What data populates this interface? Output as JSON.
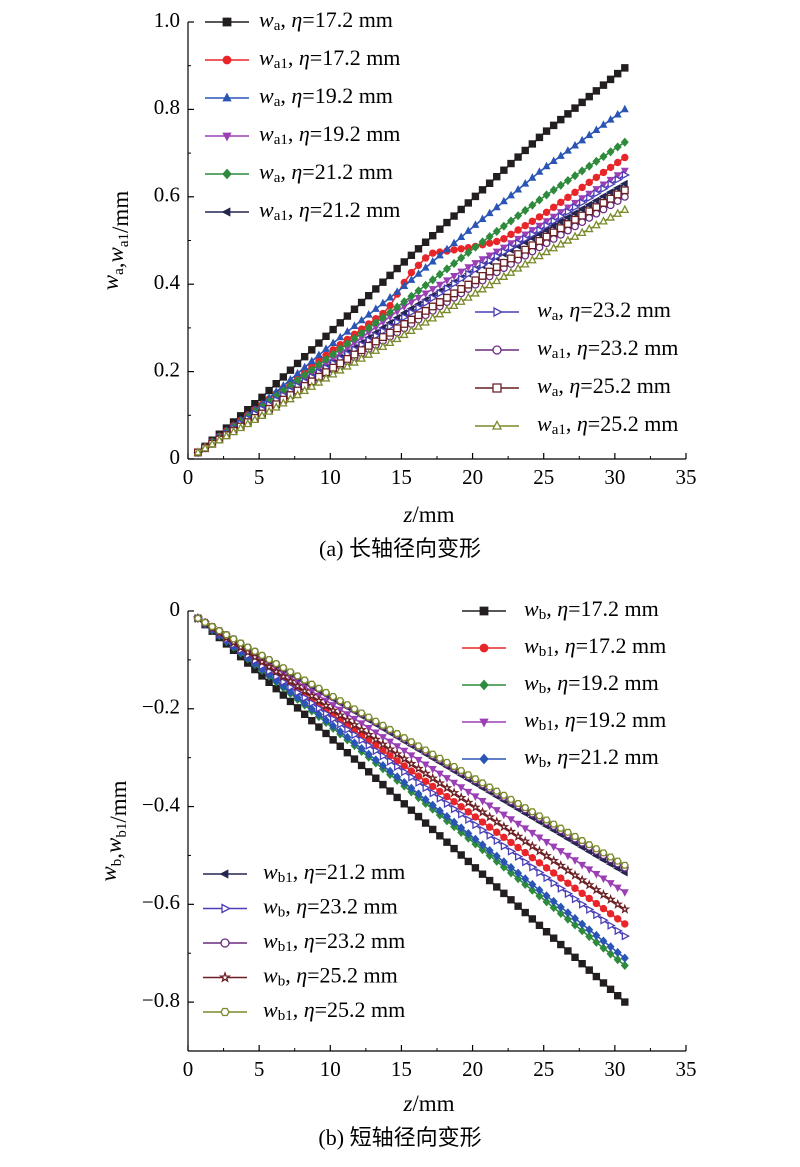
{
  "chart_data": [
    {
      "type": "line",
      "caption": "(a) 长轴径向变形",
      "xlabel": "z/mm",
      "ylabel": "w_a,w_a1/mm",
      "xlim": [
        0,
        35
      ],
      "ylim": [
        0,
        1.0
      ],
      "xticks": [
        "0",
        "5",
        "10",
        "15",
        "20",
        "25",
        "30",
        "35"
      ],
      "yticks": [
        "0",
        "0.2",
        "0.4",
        "0.6",
        "0.8",
        "1.0"
      ],
      "x_range": [
        0.7,
        30.7
      ],
      "legend_position": "top-left and right-middle",
      "series": [
        {
          "name": "w_a, η=17.2 mm",
          "sym": "a",
          "eta": "17.2",
          "color": "#231f20",
          "marker": "square-filled",
          "end": 0.895,
          "points": [
            [
              0.7,
              0.015
            ],
            [
              5,
              0.135
            ],
            [
              10,
              0.29
            ],
            [
              15,
              0.445
            ],
            [
              20,
              0.595
            ],
            [
              25,
              0.745
            ],
            [
              30.7,
              0.895
            ]
          ]
        },
        {
          "name": "w_a1, η=17.2 mm",
          "sym": "a1",
          "eta": "17.2",
          "color": "#e8262a",
          "marker": "circle-filled",
          "end": 0.69,
          "points": [
            [
              0.7,
              0.015
            ],
            [
              5,
              0.12
            ],
            [
              10,
              0.245
            ],
            [
              14,
              0.34
            ],
            [
              15.5,
              0.42
            ],
            [
              17,
              0.47
            ],
            [
              19,
              0.48
            ],
            [
              20,
              0.485
            ],
            [
              22,
              0.5
            ],
            [
              25,
              0.56
            ],
            [
              30.7,
              0.69
            ]
          ]
        },
        {
          "name": "w_a, η=19.2 mm",
          "sym": "a",
          "eta": "19.2",
          "color": "#2a55b5",
          "marker": "triangle-up-filled",
          "end": 0.8,
          "points": [
            [
              0.7,
              0.015
            ],
            [
              5,
              0.12
            ],
            [
              10,
              0.26
            ],
            [
              15,
              0.39
            ],
            [
              20,
              0.53
            ],
            [
              25,
              0.665
            ],
            [
              30.7,
              0.8
            ]
          ]
        },
        {
          "name": "w_a1, η=19.2 mm",
          "sym": "a1",
          "eta": "19.2",
          "color": "#9b3fb5",
          "marker": "triangle-down-filled",
          "end": 0.66,
          "points": [
            [
              0.7,
              0.015
            ],
            [
              5,
              0.11
            ],
            [
              10,
              0.225
            ],
            [
              15,
              0.345
            ],
            [
              20,
              0.445
            ],
            [
              22,
              0.48
            ],
            [
              25,
              0.54
            ],
            [
              30.7,
              0.66
            ]
          ]
        },
        {
          "name": "w_a, η=21.2 mm",
          "sym": "a",
          "eta": "21.2",
          "color": "#2e8b3d",
          "marker": "diamond-filled",
          "end": 0.725,
          "points": [
            [
              0.7,
              0.015
            ],
            [
              5,
              0.115
            ],
            [
              10,
              0.235
            ],
            [
              15,
              0.355
            ],
            [
              20,
              0.48
            ],
            [
              25,
              0.6
            ],
            [
              30.7,
              0.725
            ]
          ]
        },
        {
          "name": "w_a1, η=21.2 mm",
          "sym": "a1",
          "eta": "21.2",
          "color": "#252650",
          "marker": "triangle-left-filled",
          "end": 0.63,
          "points": [
            [
              0.7,
              0.015
            ],
            [
              5,
              0.105
            ],
            [
              10,
              0.215
            ],
            [
              15,
              0.33
            ],
            [
              20,
              0.43
            ],
            [
              25,
              0.52
            ],
            [
              30.7,
              0.63
            ]
          ]
        },
        {
          "name": "w_a, η=23.2 mm",
          "sym": "a",
          "eta": "23.2",
          "color": "#4a3fb8",
          "marker": "triangle-right-open",
          "end": 0.65,
          "points": [
            [
              0.7,
              0.015
            ],
            [
              5,
              0.11
            ],
            [
              10,
              0.215
            ],
            [
              15,
              0.32
            ],
            [
              20,
              0.43
            ],
            [
              25,
              0.53
            ],
            [
              30.7,
              0.65
            ]
          ]
        },
        {
          "name": "w_a1, η=23.2 mm",
          "sym": "a1",
          "eta": "23.2",
          "color": "#6a2c7f",
          "marker": "circle-open",
          "end": 0.6,
          "points": [
            [
              0.7,
              0.015
            ],
            [
              5,
              0.1
            ],
            [
              10,
              0.2
            ],
            [
              15,
              0.295
            ],
            [
              20,
              0.395
            ],
            [
              25,
              0.49
            ],
            [
              30.7,
              0.6
            ]
          ]
        },
        {
          "name": "w_a, η=25.2 mm",
          "sym": "a",
          "eta": "25.2",
          "color": "#6a1f23",
          "marker": "square-open",
          "end": 0.615,
          "points": [
            [
              0.7,
              0.015
            ],
            [
              5,
              0.1
            ],
            [
              10,
              0.205
            ],
            [
              15,
              0.305
            ],
            [
              20,
              0.405
            ],
            [
              25,
              0.505
            ],
            [
              30.7,
              0.615
            ]
          ]
        },
        {
          "name": "w_a1, η=25.2 mm",
          "sym": "a1",
          "eta": "25.2",
          "color": "#7a8a2a",
          "marker": "triangle-up-open",
          "end": 0.57,
          "points": [
            [
              0.7,
              0.015
            ],
            [
              5,
              0.095
            ],
            [
              10,
              0.19
            ],
            [
              15,
              0.28
            ],
            [
              20,
              0.375
            ],
            [
              25,
              0.47
            ],
            [
              30.7,
              0.57
            ]
          ]
        }
      ]
    },
    {
      "type": "line",
      "caption": "(b) 短轴径向变形",
      "xlabel": "z/mm",
      "ylabel": "w_b,w_b1/mm",
      "xlim": [
        0,
        35
      ],
      "ylim": [
        -0.9,
        0
      ],
      "xticks": [
        "0",
        "5",
        "10",
        "15",
        "20",
        "25",
        "30",
        "35"
      ],
      "yticks": [
        "0",
        "−0.2",
        "−0.4",
        "−0.6",
        "−0.8"
      ],
      "x_range": [
        0.7,
        30.7
      ],
      "legend_position": "top-right and bottom-left",
      "series": [
        {
          "name": "w_b, η=17.2 mm",
          "sym": "b",
          "eta": "17.2",
          "color": "#231f20",
          "marker": "square-filled",
          "end": -0.8,
          "points": [
            [
              0.7,
              -0.015
            ],
            [
              30.7,
              -0.8
            ]
          ]
        },
        {
          "name": "w_b1, η=17.2 mm",
          "sym": "b1",
          "eta": "17.2",
          "color": "#e8262a",
          "marker": "circle-filled",
          "end": -0.64,
          "points": [
            [
              0.7,
              -0.015
            ],
            [
              30.7,
              -0.64
            ]
          ]
        },
        {
          "name": "w_b, η=19.2 mm",
          "sym": "b",
          "eta": "19.2",
          "color": "#2e8b3d",
          "marker": "diamond-filled",
          "end": -0.725,
          "points": [
            [
              0.7,
              -0.015
            ],
            [
              30.7,
              -0.725
            ]
          ]
        },
        {
          "name": "w_b1, η=19.2 mm",
          "sym": "b1",
          "eta": "19.2",
          "color": "#9b3fb5",
          "marker": "triangle-down-filled",
          "end": -0.575,
          "points": [
            [
              0.7,
              -0.015
            ],
            [
              30.7,
              -0.575
            ]
          ]
        },
        {
          "name": "w_b, η=21.2 mm",
          "sym": "b",
          "eta": "21.2",
          "color": "#2a55b5",
          "marker": "diamond-filled",
          "end": -0.71,
          "points": [
            [
              0.7,
              -0.015
            ],
            [
              30.7,
              -0.71
            ]
          ]
        },
        {
          "name": "w_b1, η=21.2 mm",
          "sym": "b1",
          "eta": "21.2",
          "color": "#252650",
          "marker": "triangle-left-filled",
          "end": -0.535,
          "points": [
            [
              0.7,
              -0.015
            ],
            [
              30.7,
              -0.535
            ]
          ]
        },
        {
          "name": "w_b, η=23.2 mm",
          "sym": "b",
          "eta": "23.2",
          "color": "#4a3fb8",
          "marker": "triangle-right-open",
          "end": -0.665,
          "points": [
            [
              0.7,
              -0.015
            ],
            [
              30.7,
              -0.665
            ]
          ]
        },
        {
          "name": "w_b1, η=23.2 mm",
          "sym": "b1",
          "eta": "23.2",
          "color": "#6a2c7f",
          "marker": "circle-open",
          "end": -0.525,
          "points": [
            [
              0.7,
              -0.015
            ],
            [
              30.7,
              -0.525
            ]
          ]
        },
        {
          "name": "w_b, η=25.2 mm",
          "sym": "b",
          "eta": "25.2",
          "color": "#6a1f23",
          "marker": "star-open",
          "end": -0.61,
          "points": [
            [
              0.7,
              -0.015
            ],
            [
              30.7,
              -0.61
            ]
          ]
        },
        {
          "name": "w_b1, η=25.2 mm",
          "sym": "b1",
          "eta": "25.2",
          "color": "#7a8a2a",
          "marker": "hexagon-open",
          "end": -0.52,
          "points": [
            [
              0.7,
              -0.015
            ],
            [
              30.7,
              -0.52
            ]
          ]
        }
      ]
    }
  ]
}
